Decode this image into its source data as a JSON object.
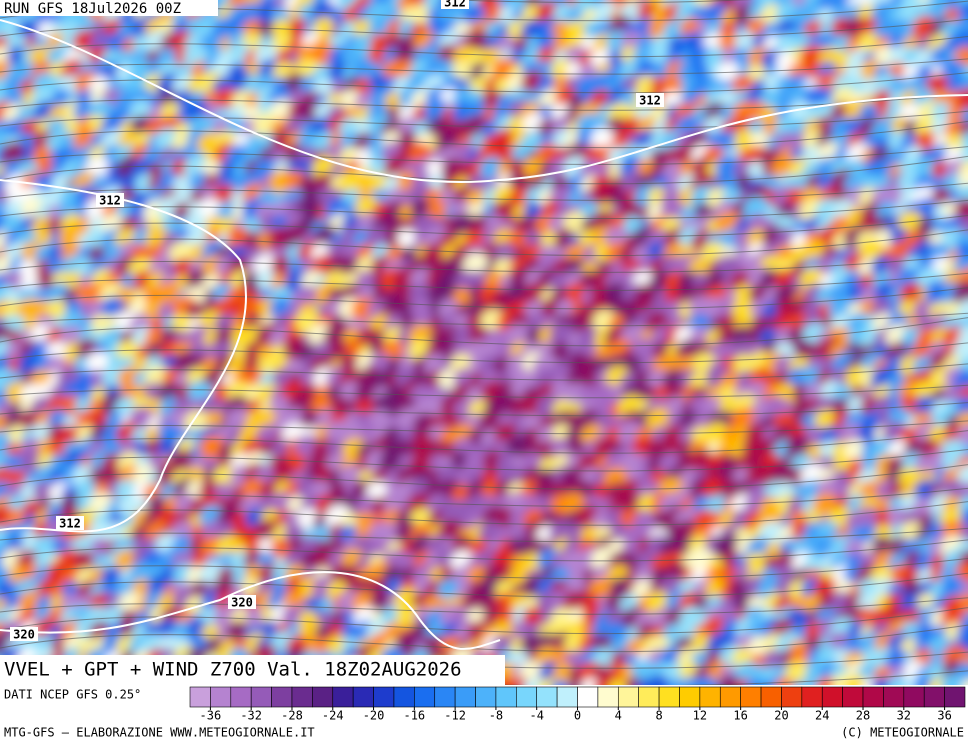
{
  "header": {
    "run": "RUN GFS 18Jul2026 00Z"
  },
  "map": {
    "title": "VVEL + GPT + WIND Z700 Val. 18Z02AUG2026",
    "contour_labels": [
      312,
      312,
      312,
      312,
      320,
      320
    ]
  },
  "legend": {
    "source": "DATI NCEP GFS 0.25°",
    "range": [
      -38,
      38
    ],
    "colors": [
      "#c9a0dc",
      "#b583d0",
      "#a66bc4",
      "#955bb8",
      "#7d3fa0",
      "#6a2c8f",
      "#5a2185",
      "#3a1f9a",
      "#2a2ab5",
      "#1e3ccd",
      "#1455e0",
      "#1a6ef0",
      "#2a86f5",
      "#3a9cf8",
      "#4db2fa",
      "#60c6fb",
      "#78d6fc",
      "#94e2fc",
      "#c0f0fc",
      "#ffffff",
      "#fffccf",
      "#fff59a",
      "#ffec5a",
      "#ffe020",
      "#ffcc00",
      "#ffb300",
      "#ff9a00",
      "#ff7f00",
      "#f86000",
      "#ee4010",
      "#e02020",
      "#d0102a",
      "#c00a3a",
      "#b00848",
      "#a00a55",
      "#900a60",
      "#82106a",
      "#701470"
    ],
    "ticks": [
      -36,
      -32,
      -28,
      -24,
      -20,
      -16,
      -12,
      -8,
      -4,
      0,
      4,
      8,
      12,
      16,
      20,
      24,
      28,
      32,
      36
    ]
  },
  "footer": {
    "left": "MTG-GFS — ELABORAZIONE WWW.METEOGIORNALE.IT",
    "right": "(C) METEOGIORNALE"
  }
}
